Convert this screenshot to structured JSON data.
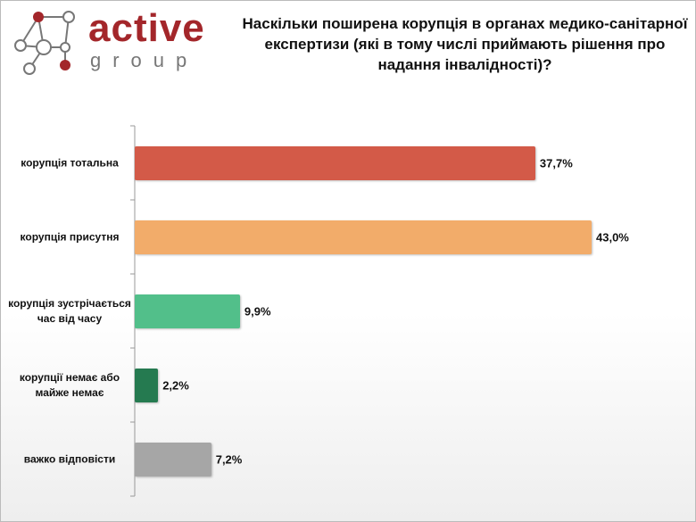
{
  "logo": {
    "text": "active",
    "subtext": "group"
  },
  "chart_data": {
    "type": "bar",
    "orientation": "horizontal",
    "title": "Наскільки поширена корупція в органах медико-санітарної експертизи (які в тому числі приймають рішення про надання інвалідності)?",
    "categories": [
      "корупція тотальна",
      "корупція присутня",
      "корупція зустрічається час від часу",
      "корупції немає або майже немає",
      "важко відповісти"
    ],
    "values": [
      37.7,
      43.0,
      9.9,
      2.2,
      7.2
    ],
    "value_labels": [
      "37,7%",
      "43,0%",
      "9,9%",
      "2,2%",
      "7,2%"
    ],
    "colors": [
      "#d35a48",
      "#f2ac6a",
      "#52bf8a",
      "#257a50",
      "#a6a6a6"
    ]
  }
}
